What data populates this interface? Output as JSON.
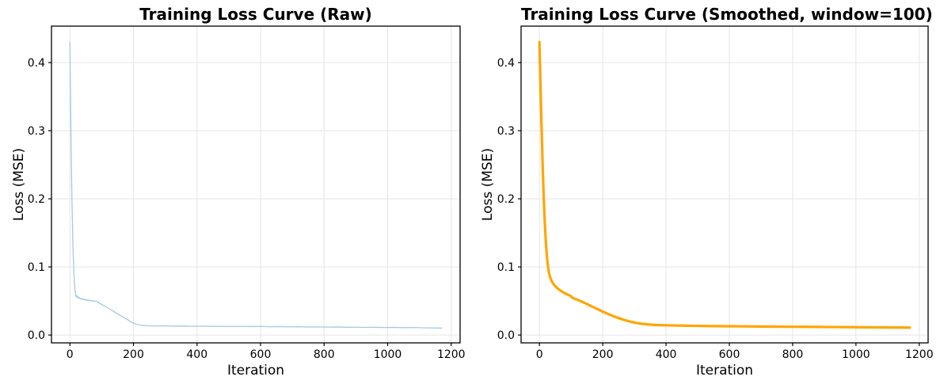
{
  "style": {
    "figure_background": "#ffffff",
    "grid_color": "#e5e5e5",
    "spine_color": "#000000",
    "tick_color": "#000000",
    "text_color": "#000000",
    "raw_line_color": "#a5c9e1",
    "smoothed_line_color": "#ffa500"
  },
  "chart_data": [
    {
      "type": "line",
      "title": "Training Loss Curve (Raw)",
      "xlabel": "Iteration",
      "ylabel": "Loss (MSE)",
      "xlim": [
        -58,
        1228
      ],
      "ylim": [
        -0.0115,
        0.4535
      ],
      "xticks": [
        0,
        200,
        400,
        600,
        800,
        1000,
        1200
      ],
      "xtick_labels": [
        "0",
        "200",
        "400",
        "600",
        "800",
        "1000",
        "1200"
      ],
      "yticks": [
        0.0,
        0.1,
        0.2,
        0.3,
        0.4
      ],
      "ytick_labels": [
        "0.0",
        "0.1",
        "0.2",
        "0.3",
        "0.4"
      ],
      "grid": true,
      "legend": "none",
      "series": [
        {
          "name": "raw_loss",
          "color": "#a5c9e1",
          "linewidth": 1.3,
          "points": [
            [
              0,
              0.43
            ],
            [
              1,
              0.39
            ],
            [
              2,
              0.348
            ],
            [
              3,
              0.308
            ],
            [
              4,
              0.272
            ],
            [
              5,
              0.24
            ],
            [
              6,
              0.211
            ],
            [
              7,
              0.186
            ],
            [
              8,
              0.163
            ],
            [
              9,
              0.143
            ],
            [
              10,
              0.126
            ],
            [
              11,
              0.111
            ],
            [
              12,
              0.098
            ],
            [
              13,
              0.087
            ],
            [
              14,
              0.078
            ],
            [
              15,
              0.071
            ],
            [
              16,
              0.066
            ],
            [
              17,
              0.062
            ],
            [
              18,
              0.0595
            ],
            [
              19,
              0.0575
            ],
            [
              20,
              0.056
            ],
            [
              22,
              0.058
            ],
            [
              24,
              0.055
            ],
            [
              26,
              0.0558
            ],
            [
              28,
              0.054
            ],
            [
              30,
              0.0548
            ],
            [
              33,
              0.0528
            ],
            [
              36,
              0.054
            ],
            [
              39,
              0.0522
            ],
            [
              42,
              0.053
            ],
            [
              45,
              0.0515
            ],
            [
              48,
              0.0525
            ],
            [
              51,
              0.051
            ],
            [
              54,
              0.052
            ],
            [
              57,
              0.0505
            ],
            [
              60,
              0.0515
            ],
            [
              64,
              0.05
            ],
            [
              68,
              0.051
            ],
            [
              72,
              0.0495
            ],
            [
              76,
              0.0505
            ],
            [
              80,
              0.049
            ],
            [
              84,
              0.0498
            ],
            [
              88,
              0.0482
            ],
            [
              92,
              0.047
            ],
            [
              96,
              0.0458
            ],
            [
              100,
              0.045
            ],
            [
              105,
              0.0438
            ],
            [
              110,
              0.0424
            ],
            [
              115,
              0.041
            ],
            [
              120,
              0.0396
            ],
            [
              125,
              0.0382
            ],
            [
              130,
              0.0368
            ],
            [
              135,
              0.0354
            ],
            [
              140,
              0.034
            ],
            [
              145,
              0.0326
            ],
            [
              150,
              0.0312
            ],
            [
              155,
              0.0298
            ],
            [
              160,
              0.0284
            ],
            [
              165,
              0.027
            ],
            [
              170,
              0.0256
            ],
            [
              175,
              0.0242
            ],
            [
              180,
              0.0228
            ],
            [
              185,
              0.0214
            ],
            [
              190,
              0.02
            ],
            [
              195,
              0.0188
            ],
            [
              200,
              0.0176
            ],
            [
              205,
              0.0166
            ],
            [
              210,
              0.0158
            ],
            [
              215,
              0.0152
            ],
            [
              220,
              0.0148
            ],
            [
              225,
              0.0145
            ],
            [
              230,
              0.0142
            ],
            [
              235,
              0.014
            ],
            [
              240,
              0.0138
            ],
            [
              270,
              0.0132
            ],
            [
              300,
              0.0135
            ],
            [
              330,
              0.013
            ],
            [
              360,
              0.0133
            ],
            [
              390,
              0.0128
            ],
            [
              420,
              0.0131
            ],
            [
              450,
              0.0127
            ],
            [
              480,
              0.0129
            ],
            [
              510,
              0.0125
            ],
            [
              540,
              0.0128
            ],
            [
              570,
              0.0124
            ],
            [
              600,
              0.0126
            ],
            [
              630,
              0.0122
            ],
            [
              660,
              0.0124
            ],
            [
              690,
              0.012
            ],
            [
              720,
              0.0122
            ],
            [
              750,
              0.0118
            ],
            [
              780,
              0.012
            ],
            [
              810,
              0.0116
            ],
            [
              840,
              0.0118
            ],
            [
              870,
              0.0114
            ],
            [
              900,
              0.0116
            ],
            [
              930,
              0.0112
            ],
            [
              960,
              0.0114
            ],
            [
              990,
              0.011
            ],
            [
              1020,
              0.0112
            ],
            [
              1050,
              0.0108
            ],
            [
              1080,
              0.011
            ],
            [
              1110,
              0.0106
            ],
            [
              1140,
              0.0104
            ],
            [
              1170,
              0.0102
            ]
          ]
        }
      ]
    },
    {
      "type": "line",
      "title": "Training Loss Curve (Smoothed, window=100)",
      "xlabel": "Iteration",
      "ylabel": "Loss (MSE)",
      "xlim": [
        -58,
        1228
      ],
      "ylim": [
        -0.0115,
        0.4535
      ],
      "xticks": [
        0,
        200,
        400,
        600,
        800,
        1000,
        1200
      ],
      "xtick_labels": [
        "0",
        "200",
        "400",
        "600",
        "800",
        "1000",
        "1200"
      ],
      "yticks": [
        0.0,
        0.1,
        0.2,
        0.3,
        0.4
      ],
      "ytick_labels": [
        "0.0",
        "0.1",
        "0.2",
        "0.3",
        "0.4"
      ],
      "grid": true,
      "legend": "none",
      "series": [
        {
          "name": "smoothed_loss",
          "color": "#ffa500",
          "linewidth": 3.2,
          "points": [
            [
              0,
              0.43
            ],
            [
              2,
              0.392
            ],
            [
              4,
              0.354
            ],
            [
              6,
              0.318
            ],
            [
              8,
              0.284
            ],
            [
              10,
              0.252
            ],
            [
              12,
              0.223
            ],
            [
              14,
              0.197
            ],
            [
              16,
              0.174
            ],
            [
              18,
              0.155
            ],
            [
              20,
              0.139
            ],
            [
              22,
              0.125
            ],
            [
              24,
              0.114
            ],
            [
              26,
              0.105
            ],
            [
              28,
              0.0975
            ],
            [
              30,
              0.0915
            ],
            [
              33,
              0.086
            ],
            [
              36,
              0.082
            ],
            [
              40,
              0.078
            ],
            [
              45,
              0.0745
            ],
            [
              50,
              0.0718
            ],
            [
              55,
              0.0695
            ],
            [
              60,
              0.0675
            ],
            [
              65,
              0.0658
            ],
            [
              70,
              0.0642
            ],
            [
              75,
              0.0628
            ],
            [
              80,
              0.0615
            ],
            [
              85,
              0.0603
            ],
            [
              90,
              0.0592
            ],
            [
              94,
              0.0584
            ],
            [
              98,
              0.0576
            ],
            [
              101,
              0.056
            ],
            [
              104,
              0.0548
            ],
            [
              108,
              0.054
            ],
            [
              112,
              0.0532
            ],
            [
              116,
              0.0525
            ],
            [
              120,
              0.0518
            ],
            [
              130,
              0.0498
            ],
            [
              140,
              0.0477
            ],
            [
              150,
              0.0455
            ],
            [
              160,
              0.0432
            ],
            [
              170,
              0.041
            ],
            [
              180,
              0.0388
            ],
            [
              190,
              0.0366
            ],
            [
              200,
              0.0344
            ],
            [
              210,
              0.0323
            ],
            [
              220,
              0.0303
            ],
            [
              230,
              0.0284
            ],
            [
              240,
              0.0266
            ],
            [
              250,
              0.0249
            ],
            [
              260,
              0.0233
            ],
            [
              270,
              0.0219
            ],
            [
              280,
              0.0206
            ],
            [
              290,
              0.0194
            ],
            [
              300,
              0.0184
            ],
            [
              310,
              0.0175
            ],
            [
              320,
              0.0168
            ],
            [
              330,
              0.0162
            ],
            [
              340,
              0.0157
            ],
            [
              350,
              0.0153
            ],
            [
              360,
              0.015
            ],
            [
              380,
              0.0146
            ],
            [
              400,
              0.0143
            ],
            [
              450,
              0.0138
            ],
            [
              500,
              0.0134
            ],
            [
              550,
              0.0131
            ],
            [
              600,
              0.0129
            ],
            [
              650,
              0.0127
            ],
            [
              700,
              0.0125
            ],
            [
              750,
              0.0123
            ],
            [
              800,
              0.0121
            ],
            [
              850,
              0.012
            ],
            [
              900,
              0.0118
            ],
            [
              950,
              0.0117
            ],
            [
              1000,
              0.0115
            ],
            [
              1050,
              0.0113
            ],
            [
              1100,
              0.0112
            ],
            [
              1150,
              0.011
            ],
            [
              1170,
              0.0109
            ]
          ]
        }
      ]
    }
  ]
}
